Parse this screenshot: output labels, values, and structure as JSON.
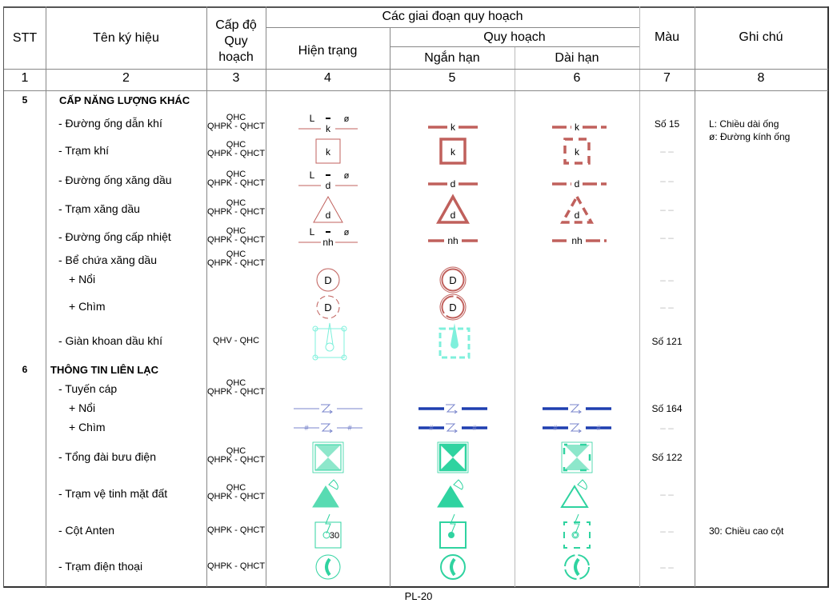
{
  "header": {
    "stt": "STT",
    "name": "Tên ký hiệu",
    "level": [
      "Cấp độ",
      "Quy",
      "hoạch"
    ],
    "stages": "Các giai đoạn quy hoạch",
    "current": "Hiện trạng",
    "planning": "Quy hoạch",
    "short_term": "Ngắn hạn",
    "long_term": "Dài hạn",
    "color": "Màu",
    "note": "Ghi chú",
    "numbers": [
      "1",
      "2",
      "3",
      "4",
      "5",
      "6",
      "7",
      "8"
    ]
  },
  "colors": {
    "energy": "#c0605c",
    "cable": "#1f3fb0",
    "cable_thin": "#7a86cc",
    "telecom": "#2fd3a0",
    "rig": "#7ff0dc"
  },
  "rows": [
    {
      "type": "section",
      "stt": "5",
      "name": "CẤP NĂNG LƯỢNG KHÁC"
    },
    {
      "name": "- Đường ống dẫn khí",
      "level": [
        "QHC",
        "QHPK - QHCT"
      ],
      "symbol": "pipe-icon",
      "label": "k",
      "sub": [
        "L",
        "ø"
      ],
      "hue": "energy",
      "color_no": "Số 15",
      "cols": [
        0,
        1,
        2
      ],
      "note": [
        "L: Chiều dài ống",
        "ø: Đường kính ống"
      ]
    },
    {
      "name": "- Trạm khí",
      "level": [
        "QHC",
        "QHPK - QHCT"
      ],
      "symbol": "station-box-icon",
      "label": "k",
      "hue": "energy",
      "color_no": "– –",
      "cols": [
        0,
        1,
        2
      ]
    },
    {
      "name": "- Đường ống xăng dầu",
      "level": [
        "QHC",
        "QHPK - QHCT"
      ],
      "symbol": "pipe-icon",
      "label": "d",
      "sub": [
        "L",
        "ø"
      ],
      "hue": "energy",
      "color_no": "– –",
      "cols": [
        0,
        1,
        2
      ]
    },
    {
      "name": "- Trạm xăng dầu",
      "level": [
        "QHC",
        "QHPK - QHCT"
      ],
      "symbol": "triangle-station-icon",
      "label": "d",
      "hue": "energy",
      "color_no": "– –",
      "cols": [
        0,
        1,
        2
      ]
    },
    {
      "name": "- Đường ống cấp nhiệt",
      "level": [
        "QHC",
        "QHPK - QHCT"
      ],
      "symbol": "pipe-icon",
      "label": "nh",
      "sub": [
        "L",
        "ø"
      ],
      "hue": "energy",
      "color_no": "– –",
      "cols": [
        0,
        1,
        2
      ]
    },
    {
      "name": "- Bể chứa xăng dầu",
      "level": [
        "QHC",
        "QHPK - QHCT"
      ]
    },
    {
      "name": "+ Nổi",
      "indent": true,
      "symbol": "tank-icon",
      "label": "D",
      "hue": "energy",
      "color_no": "– –",
      "cols": [
        0,
        1
      ]
    },
    {
      "name": "+ Chìm",
      "indent": true,
      "symbol": "tank-underground-icon",
      "label": "D",
      "hue": "energy",
      "color_no": "– –",
      "cols": [
        0,
        1
      ]
    },
    {
      "name": "- Giàn khoan dầu khí",
      "level": [
        "QHV - QHC"
      ],
      "symbol": "oil-rig-icon",
      "hue": "rig",
      "color_no": "Số 121",
      "cols": [
        0,
        1
      ]
    },
    {
      "type": "section",
      "stt": "6",
      "name": "THÔNG TIN LIÊN LẠC"
    },
    {
      "name": "- Tuyến cáp",
      "level": [
        "QHC",
        "QHPK - QHCT"
      ]
    },
    {
      "name": "+ Nổi",
      "indent": true,
      "symbol": "cable-icon",
      "hue": "cable",
      "color_no": "Số 164",
      "cols": [
        0,
        1,
        2
      ]
    },
    {
      "name": "+ Chìm",
      "indent": true,
      "symbol": "cable-underground-icon",
      "hue": "cable",
      "color_no": "– –",
      "cols": [
        0,
        1,
        2
      ]
    },
    {
      "name": "- Tổng đài bưu điện",
      "level": [
        "QHC",
        "QHPK - QHCT"
      ],
      "symbol": "exchange-icon",
      "hue": "telecom",
      "color_no": "Số 122",
      "cols": [
        0,
        1,
        2
      ]
    },
    {
      "name": "- Trạm vệ tinh mặt đất",
      "level": [
        "QHC",
        "QHPK - QHCT"
      ],
      "symbol": "satellite-station-icon",
      "hue": "telecom",
      "color_no": "– –",
      "cols": [
        0,
        1,
        2
      ]
    },
    {
      "name": "- Cột Anten",
      "level": [
        "QHPK - QHCT"
      ],
      "symbol": "antenna-icon",
      "label": "30",
      "hue": "telecom",
      "color_no": "– –",
      "cols": [
        0,
        1,
        2
      ],
      "note": [
        "30: Chiều cao cột"
      ]
    },
    {
      "name": "- Trạm điện thoại",
      "level": [
        "QHPK - QHCT"
      ],
      "symbol": "phone-station-icon",
      "hue": "telecom",
      "color_no": "– –",
      "cols": [
        0,
        1,
        2
      ]
    }
  ],
  "footer": "PL-20"
}
